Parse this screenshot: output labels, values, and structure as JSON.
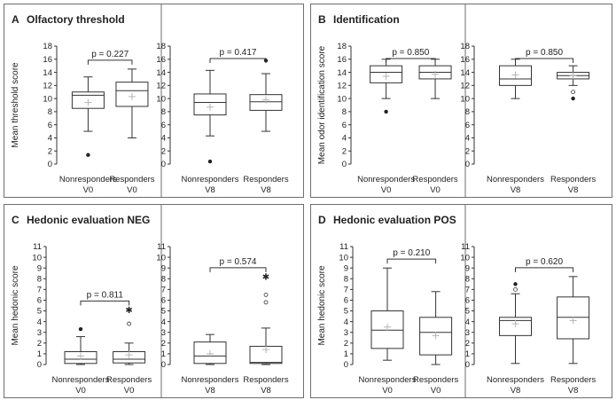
{
  "colors": {
    "frame": "#6e6e6e",
    "ink": "#333333",
    "mean_marker": "#b5b5b5"
  },
  "chart_data": [
    {
      "type": "box",
      "panel": "A",
      "title": "Olfactory threshold",
      "ylabel": "Mean threshold score",
      "ylim": [
        0,
        18
      ],
      "yticks": [
        0,
        2,
        4,
        6,
        8,
        10,
        12,
        14,
        16,
        18
      ],
      "subplots": [
        {
          "label": "V0",
          "p_value": "p = 0.227",
          "groups": [
            {
              "name": "Nonresponders",
              "visit": "V0",
              "min": 5.0,
              "q1": 8.5,
              "median": 10.5,
              "q3": 11.0,
              "max": 13.3,
              "mean": 9.4,
              "outliers": [
                {
                  "value": 1.4,
                  "marker": "filled"
                }
              ]
            },
            {
              "name": "Responders",
              "visit": "V0",
              "min": 4.0,
              "q1": 8.8,
              "median": 11.2,
              "q3": 12.5,
              "max": 14.5,
              "mean": 10.3,
              "outliers": []
            }
          ]
        },
        {
          "label": "V8",
          "p_value": "p = 0.417",
          "groups": [
            {
              "name": "Nonresponders",
              "visit": "V8",
              "min": 4.3,
              "q1": 7.5,
              "median": 9.4,
              "q3": 10.7,
              "max": 14.3,
              "mean": 8.7,
              "outliers": [
                {
                  "value": 0.4,
                  "marker": "filled"
                }
              ]
            },
            {
              "name": "Responders",
              "visit": "V8",
              "min": 5.0,
              "q1": 8.2,
              "median": 9.5,
              "q3": 10.6,
              "max": 13.8,
              "mean": 9.8,
              "outliers": [
                {
                  "value": 15.8,
                  "marker": "filled"
                }
              ]
            }
          ]
        }
      ]
    },
    {
      "type": "box",
      "panel": "B",
      "title": "Identification",
      "ylabel": "Mean odor identification score",
      "ylim": [
        0,
        18
      ],
      "yticks": [
        0,
        2,
        4,
        6,
        8,
        10,
        12,
        14,
        16,
        18
      ],
      "subplots": [
        {
          "label": "V0",
          "p_value": "p = 0.850",
          "groups": [
            {
              "name": "Nonresponders",
              "visit": "V0",
              "min": 10.0,
              "q1": 12.4,
              "median": 14.0,
              "q3": 15.0,
              "max": 16.0,
              "mean": 13.4,
              "outliers": [
                {
                  "value": 8.0,
                  "marker": "filled"
                }
              ]
            },
            {
              "name": "Responders",
              "visit": "V0",
              "min": 10.0,
              "q1": 13.0,
              "median": 14.0,
              "q3": 15.0,
              "max": 16.0,
              "mean": 13.7,
              "outliers": []
            }
          ]
        },
        {
          "label": "V8",
          "p_value": "p = 0.850",
          "groups": [
            {
              "name": "Nonresponders",
              "visit": "V8",
              "min": 10.0,
              "q1": 12.0,
              "median": 13.0,
              "q3": 15.0,
              "max": 16.0,
              "mean": 13.6,
              "outliers": []
            },
            {
              "name": "Responders",
              "visit": "V8",
              "min": 12.0,
              "q1": 13.0,
              "median": 13.5,
              "q3": 14.0,
              "max": 15.0,
              "mean": 13.5,
              "outliers": [
                {
                  "value": 11.0,
                  "marker": "open"
                },
                {
                  "value": 10.0,
                  "marker": "filled"
                }
              ]
            }
          ]
        }
      ]
    },
    {
      "type": "box",
      "panel": "C",
      "title": "Hedonic evaluation NEG",
      "ylabel": "Mean hedonic score",
      "ylim": [
        0,
        11
      ],
      "yticks": [
        0,
        1,
        2,
        3,
        4,
        5,
        6,
        7,
        8,
        9,
        10,
        11
      ],
      "subplots": [
        {
          "label": "V0",
          "p_value": "p = 0.811",
          "groups": [
            {
              "name": "Nonresponders",
              "visit": "V0",
              "min": 0.0,
              "q1": 0.1,
              "median": 0.5,
              "q3": 1.2,
              "max": 2.6,
              "mean": 0.8,
              "outliers": [
                {
                  "value": 3.3,
                  "marker": "filled"
                }
              ]
            },
            {
              "name": "Responders",
              "visit": "V0",
              "min": 0.0,
              "q1": 0.15,
              "median": 0.5,
              "q3": 1.2,
              "max": 2.0,
              "mean": 0.9,
              "outliers": [
                {
                  "value": 5.1,
                  "marker": "star"
                },
                {
                  "value": 3.8,
                  "marker": "open"
                }
              ]
            }
          ]
        },
        {
          "label": "V8",
          "p_value": "p = 0.574",
          "groups": [
            {
              "name": "Nonresponders",
              "visit": "V8",
              "min": 0.0,
              "q1": 0.1,
              "median": 0.8,
              "q3": 2.1,
              "max": 2.8,
              "mean": 1.0,
              "outliers": []
            },
            {
              "name": "Responders",
              "visit": "V8",
              "min": 0.0,
              "q1": 0.1,
              "median": 0.2,
              "q3": 1.7,
              "max": 3.4,
              "mean": 1.4,
              "outliers": [
                {
                  "value": 8.2,
                  "marker": "star"
                },
                {
                  "value": 6.5,
                  "marker": "open"
                },
                {
                  "value": 5.8,
                  "marker": "open"
                }
              ]
            }
          ]
        }
      ]
    },
    {
      "type": "box",
      "panel": "D",
      "title": "Hedonic evaluation POS",
      "ylabel": "Mean hedonic score",
      "ylim": [
        0,
        11
      ],
      "yticks": [
        0,
        1,
        2,
        3,
        4,
        5,
        6,
        7,
        8,
        9,
        10,
        11
      ],
      "subplots": [
        {
          "label": "V0",
          "p_value": "p = 0.210",
          "groups": [
            {
              "name": "Nonresponders",
              "visit": "V0",
              "min": 0.4,
              "q1": 1.5,
              "median": 3.2,
              "q3": 5.0,
              "max": 9.0,
              "mean": 3.5,
              "outliers": []
            },
            {
              "name": "Responders",
              "visit": "V0",
              "min": 0.0,
              "q1": 0.9,
              "median": 3.0,
              "q3": 4.4,
              "max": 6.8,
              "mean": 2.7,
              "outliers": []
            }
          ]
        },
        {
          "label": "V8",
          "p_value": "p = 0.620",
          "groups": [
            {
              "name": "Nonresponders",
              "visit": "V8",
              "min": 0.1,
              "q1": 2.7,
              "median": 4.1,
              "q3": 4.4,
              "max": 6.6,
              "mean": 3.8,
              "outliers": [
                {
                  "value": 7.5,
                  "marker": "filled"
                },
                {
                  "value": 7.0,
                  "marker": "open"
                }
              ]
            },
            {
              "name": "Responders",
              "visit": "V8",
              "min": 0.1,
              "q1": 2.4,
              "median": 4.4,
              "q3": 6.3,
              "max": 8.2,
              "mean": 4.1,
              "outliers": []
            }
          ]
        }
      ]
    }
  ]
}
